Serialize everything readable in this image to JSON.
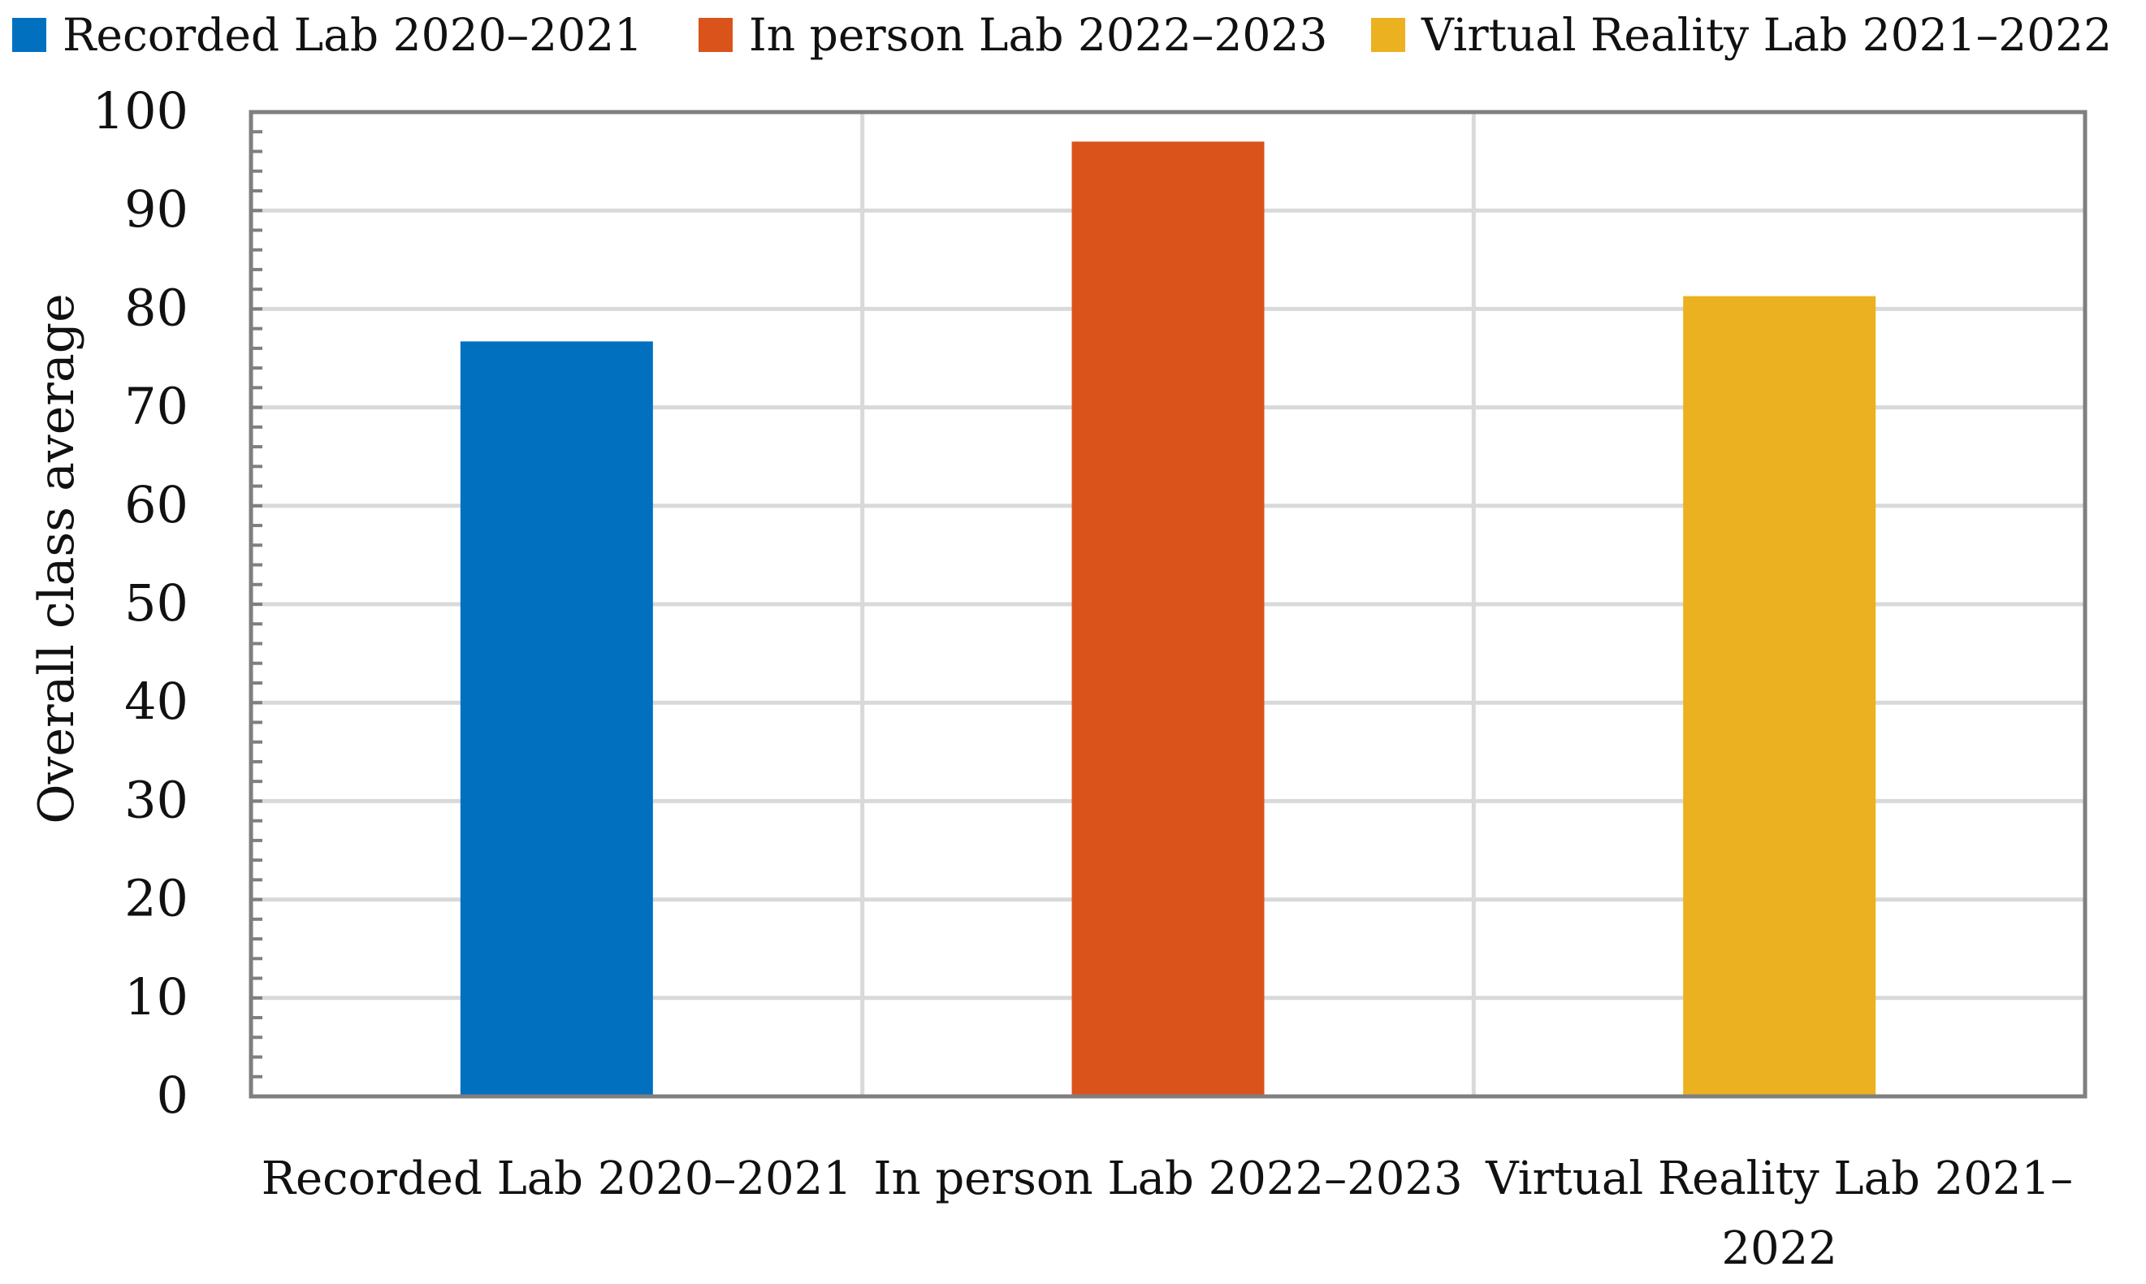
{
  "chart_data": {
    "type": "bar",
    "categories": [
      [
        "Recorded Lab 2020–2021"
      ],
      [
        "In person Lab 2022–2023"
      ],
      [
        "Virtual Reality Lab 2021–",
        "2022"
      ]
    ],
    "values": [
      76.7,
      97.0,
      81.3
    ],
    "colors": [
      "#0070BF",
      "#D9531A",
      "#ECB120"
    ],
    "legend": {
      "placement": "top",
      "entries": [
        "Recorded Lab 2020–2021",
        "In person Lab 2022–2023",
        "Virtual Reality Lab 2021–2022"
      ]
    },
    "title": "",
    "xlabel": "",
    "ylabel": "Overall class average",
    "ylim": [
      0,
      100
    ],
    "yticks": [
      0,
      10,
      20,
      30,
      40,
      50,
      60,
      70,
      80,
      90,
      100
    ],
    "minor_ticks_per_major": 5,
    "grid": true
  }
}
